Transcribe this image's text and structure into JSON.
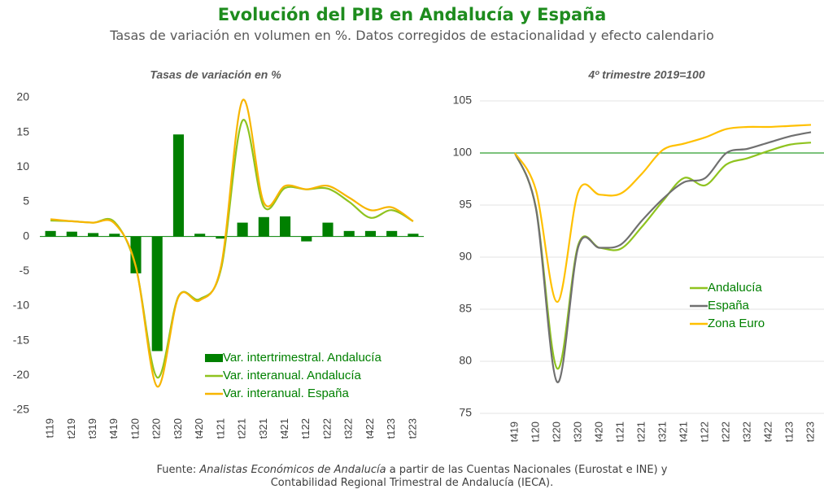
{
  "title": "Evolución del PIB en Andalucía y España",
  "subtitle": "Tasas de variación en volumen en %. Datos corregidos de estacionalidad y efecto calendario",
  "source": {
    "prefix": "Fuente: ",
    "italic": "Analistas Económicos de Andalucía",
    "rest": " a partir de las Cuentas Nacionales (Eurostat e INE) y",
    "line2": "Contabilidad Regional Trimestral de Andalucía (IECA)."
  },
  "chart_data": [
    {
      "type": "bar",
      "title": "Tasas de variación en %",
      "categories": [
        "t119",
        "t219",
        "t319",
        "t419",
        "t120",
        "t220",
        "t320",
        "t420",
        "t121",
        "t221",
        "t321",
        "t421",
        "t122",
        "t222",
        "t322",
        "t422",
        "t123",
        "t223"
      ],
      "series": [
        {
          "name": "Var. intertrimestral. Andalucía",
          "type": "bar",
          "color": "#008000",
          "values": [
            0.8,
            0.7,
            0.5,
            0.4,
            -5.3,
            -16.5,
            14.7,
            0.4,
            -0.3,
            2.0,
            2.8,
            2.9,
            -0.7,
            2.0,
            0.8,
            0.8,
            0.8,
            0.4
          ]
        },
        {
          "name": "Var. interanual. Andalucía",
          "type": "line",
          "color": "#8fc31f",
          "values": [
            2.3,
            2.2,
            2.0,
            2.1,
            -4.4,
            -20.3,
            -8.6,
            -9.0,
            -4.6,
            16.7,
            4.3,
            7.0,
            6.8,
            6.9,
            5.0,
            2.7,
            3.8,
            2.2
          ]
        },
        {
          "name": "Var. interanual. España",
          "type": "line",
          "color": "#f7b500",
          "values": [
            2.5,
            2.2,
            2.0,
            1.9,
            -4.3,
            -21.6,
            -8.7,
            -9.2,
            -4.2,
            19.6,
            4.9,
            7.3,
            6.8,
            7.3,
            5.6,
            3.8,
            4.2,
            2.2
          ]
        }
      ],
      "ylim": [
        -25,
        20
      ],
      "yticks": [
        -25,
        -20,
        -15,
        -10,
        -5,
        0,
        5,
        10,
        15,
        20
      ],
      "grid": false,
      "legend": "lower right"
    },
    {
      "type": "line",
      "title": "4º trimestre 2019=100",
      "categories": [
        "t419",
        "t120",
        "t220",
        "t320",
        "t420",
        "t121",
        "t221",
        "t321",
        "t421",
        "t122",
        "t222",
        "t322",
        "t422",
        "t123",
        "t223"
      ],
      "series": [
        {
          "name": "Andalucía",
          "type": "line",
          "color": "#8fc31f",
          "values": [
            100,
            94.7,
            79.3,
            91.2,
            90.9,
            90.8,
            92.9,
            95.4,
            97.6,
            96.9,
            98.9,
            99.5,
            100.2,
            100.8,
            101.0
          ]
        },
        {
          "name": "España",
          "type": "line",
          "color": "#707070",
          "values": [
            100,
            94.6,
            78.0,
            91.0,
            90.9,
            91.2,
            93.5,
            95.6,
            97.2,
            97.6,
            100.0,
            100.4,
            101.0,
            101.6,
            102.0
          ]
        },
        {
          "name": "Zona Euro",
          "type": "line",
          "color": "#ffc000",
          "values": [
            100,
            96.4,
            85.7,
            96.3,
            96.0,
            96.1,
            98.0,
            100.3,
            100.9,
            101.5,
            102.3,
            102.5,
            102.5,
            102.6,
            102.7
          ]
        }
      ],
      "ylim": [
        75,
        105
      ],
      "yticks": [
        75,
        80,
        85,
        90,
        95,
        100,
        105
      ],
      "grid": true,
      "reference_line": 100,
      "reference_color": "#2e9e2e",
      "legend": "center right"
    }
  ]
}
